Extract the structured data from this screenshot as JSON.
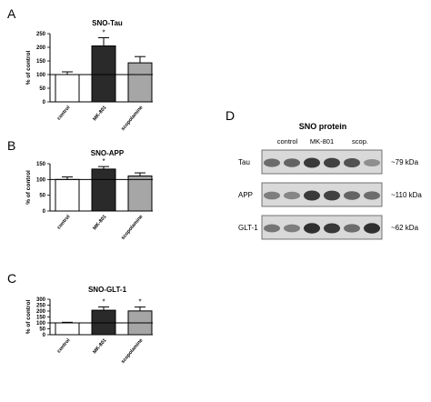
{
  "chart_data": [
    {
      "type": "bar",
      "panel_label": "A",
      "title": "SNO-Tau",
      "ylabel": "% of control",
      "ylim": [
        0,
        250
      ],
      "yticks": [
        0,
        50,
        100,
        150,
        200,
        250
      ],
      "baseline": 100,
      "categories": [
        "control",
        "MK-801",
        "scopolamine"
      ],
      "values": [
        100,
        205,
        143
      ],
      "errors": [
        10,
        30,
        23
      ],
      "significance": [
        "",
        "*",
        ""
      ],
      "colors": [
        "#ffffff",
        "#2a2a2a",
        "#a6a6a6"
      ]
    },
    {
      "type": "bar",
      "panel_label": "B",
      "title": "SNO-APP",
      "ylabel": "% of control",
      "ylim": [
        0,
        150
      ],
      "yticks": [
        0,
        50,
        100,
        150
      ],
      "baseline": 100,
      "categories": [
        "control",
        "MK-801",
        "scopolamine"
      ],
      "values": [
        100,
        133,
        111
      ],
      "errors": [
        8,
        8,
        10
      ],
      "significance": [
        "",
        "*",
        ""
      ],
      "colors": [
        "#ffffff",
        "#2a2a2a",
        "#a6a6a6"
      ]
    },
    {
      "type": "bar",
      "panel_label": "C",
      "title": "SNO-GLT-1",
      "ylabel": "% of control",
      "ylim": [
        0,
        300
      ],
      "yticks": [
        0,
        50,
        100,
        150,
        200,
        250,
        300
      ],
      "baseline": 100,
      "categories": [
        "control",
        "MK-801",
        "scopolamine"
      ],
      "values": [
        100,
        207,
        201
      ],
      "errors": [
        5,
        28,
        33
      ],
      "significance": [
        "",
        "*",
        "*"
      ],
      "colors": [
        "#ffffff",
        "#2a2a2a",
        "#a6a6a6"
      ]
    }
  ],
  "blot": {
    "panel_label": "D",
    "title": "SNO protein",
    "groups": [
      "control",
      "MK-801",
      "scop."
    ],
    "rows": [
      {
        "protein": "Tau",
        "size": "~79 kDa",
        "intensities": [
          0.55,
          0.6,
          0.85,
          0.8,
          0.7,
          0.35
        ]
      },
      {
        "protein": "APP",
        "size": "~110 kDa",
        "intensities": [
          0.45,
          0.4,
          0.85,
          0.8,
          0.6,
          0.55
        ]
      },
      {
        "protein": "GLT-1",
        "size": "~62 kDa",
        "intensities": [
          0.5,
          0.45,
          0.9,
          0.85,
          0.55,
          0.9
        ]
      }
    ]
  }
}
